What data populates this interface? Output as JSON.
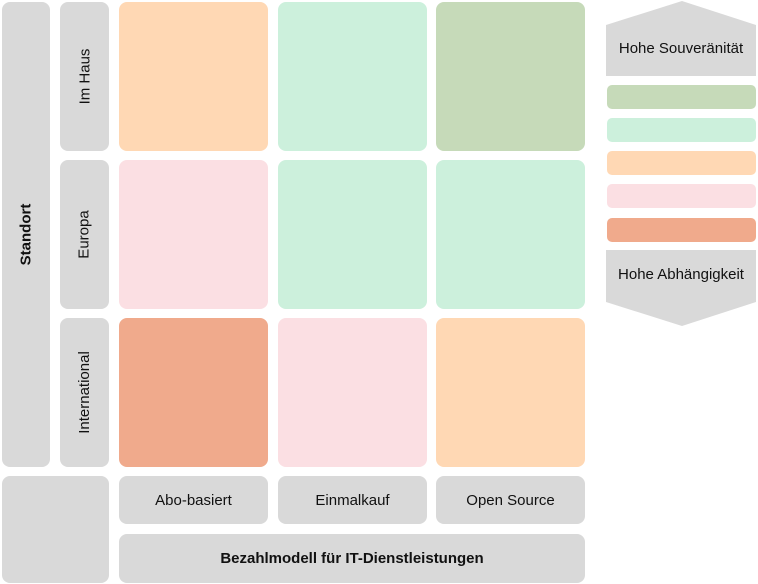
{
  "axis_y": {
    "title": "Standort",
    "rows": [
      "Im Haus",
      "Europa",
      "International"
    ]
  },
  "axis_x": {
    "title": "Bezahlmodell für IT-Dienstleistungen",
    "cols": [
      "Abo-basiert",
      "Einmalkauf",
      "Open Source"
    ]
  },
  "colors": {
    "gray": "#d9d9d9",
    "green": "#c6dab9",
    "mint": "#ccf0dc",
    "peach": "#ffd8b4",
    "pink": "#fbdfe3",
    "salmon": "#f0aa8c"
  },
  "grid": [
    [
      "peach",
      "mint",
      "green"
    ],
    [
      "pink",
      "mint",
      "mint"
    ],
    [
      "salmon",
      "pink",
      "peach"
    ]
  ],
  "legend": {
    "top_label": "Hohe Souveränität",
    "bottom_label": "Hohe Abhängigkeit",
    "scale": [
      "green",
      "mint",
      "peach",
      "pink",
      "salmon"
    ]
  }
}
